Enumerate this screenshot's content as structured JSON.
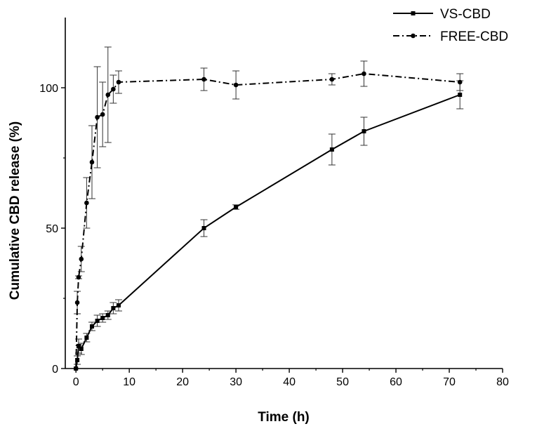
{
  "chart_data": {
    "type": "line",
    "title": "",
    "xlabel": "Time (h)",
    "ylabel": "Cumulative CBD release (%)",
    "xlim": [
      -2,
      80
    ],
    "ylim": [
      0,
      125
    ],
    "x_ticks": [
      0,
      10,
      20,
      30,
      40,
      50,
      60,
      70,
      80
    ],
    "y_ticks": [
      0,
      50,
      100
    ],
    "grid": false,
    "legend_position": "top-right",
    "series": [
      {
        "name": "VS-CBD",
        "line_style": "solid",
        "marker": "square",
        "color": "#000000",
        "points": [
          {
            "x": 0,
            "y": 0,
            "err": 0
          },
          {
            "x": 0.25,
            "y": 3,
            "err": 1.5
          },
          {
            "x": 0.5,
            "y": 8,
            "err": 2.5
          },
          {
            "x": 1,
            "y": 7,
            "err": 2
          },
          {
            "x": 2,
            "y": 11,
            "err": 1.5
          },
          {
            "x": 3,
            "y": 15,
            "err": 1.5
          },
          {
            "x": 4,
            "y": 17,
            "err": 2
          },
          {
            "x": 5,
            "y": 18,
            "err": 1.5
          },
          {
            "x": 6,
            "y": 19,
            "err": 1.5
          },
          {
            "x": 7,
            "y": 21.5,
            "err": 2
          },
          {
            "x": 8,
            "y": 22.5,
            "err": 2
          },
          {
            "x": 24,
            "y": 50,
            "err": 3
          },
          {
            "x": 30,
            "y": 57.5,
            "err": 0.8
          },
          {
            "x": 48,
            "y": 78,
            "err": 5.5
          },
          {
            "x": 54,
            "y": 84.5,
            "err": 5
          },
          {
            "x": 72,
            "y": 97.5,
            "err": 5
          }
        ]
      },
      {
        "name": "FREE-CBD",
        "line_style": "dash-dot",
        "marker": "circle",
        "color": "#000000",
        "points": [
          {
            "x": 0,
            "y": 0,
            "err": 0
          },
          {
            "x": 0.25,
            "y": 23.5,
            "err": 4
          },
          {
            "x": 0.5,
            "y": 32.5,
            "err": 0.5
          },
          {
            "x": 1,
            "y": 39,
            "err": 4.5
          },
          {
            "x": 2,
            "y": 59,
            "err": 9
          },
          {
            "x": 3,
            "y": 73.5,
            "err": 13
          },
          {
            "x": 4,
            "y": 89.5,
            "err": 18
          },
          {
            "x": 5,
            "y": 90.5,
            "err": 11.5
          },
          {
            "x": 6,
            "y": 97.5,
            "err": 17
          },
          {
            "x": 7,
            "y": 99.5,
            "err": 5
          },
          {
            "x": 8,
            "y": 102,
            "err": 4
          },
          {
            "x": 24,
            "y": 103,
            "err": 4
          },
          {
            "x": 30,
            "y": 101,
            "err": 5
          },
          {
            "x": 48,
            "y": 103,
            "err": 2
          },
          {
            "x": 54,
            "y": 105,
            "err": 4.5
          },
          {
            "x": 72,
            "y": 102,
            "err": 3
          }
        ]
      }
    ]
  }
}
